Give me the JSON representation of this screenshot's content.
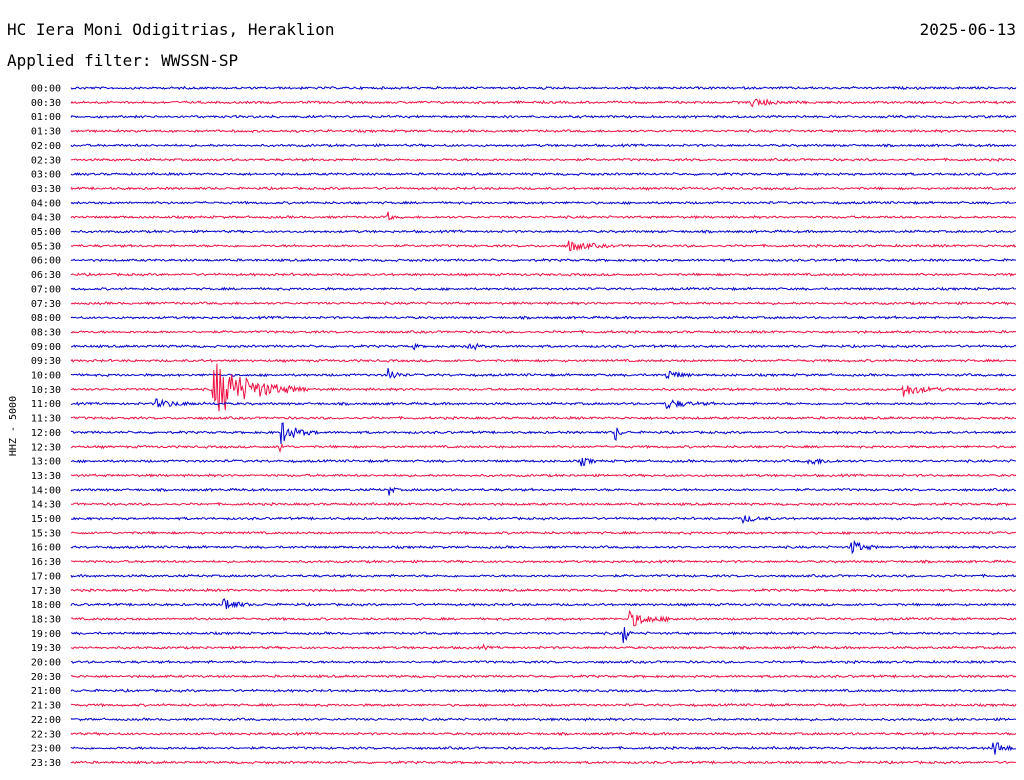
{
  "header": {
    "station": "HC Iera Moni Odigitrias, Heraklion",
    "date": "2025-06-13",
    "filter": "Applied filter: WWSSN-SP"
  },
  "chart_data": {
    "type": "line",
    "channel_label": "HHZ - 5000",
    "series_colors": [
      "#0000cc",
      "#ee1144"
    ],
    "rows": [
      {
        "label": "00:00",
        "color": "#0000cc",
        "events": []
      },
      {
        "label": "00:30",
        "color": "#ee1144",
        "events": [
          {
            "t": 0.72,
            "a": 4,
            "d": 0.06
          }
        ]
      },
      {
        "label": "01:00",
        "color": "#0000cc",
        "events": []
      },
      {
        "label": "01:30",
        "color": "#ee1144",
        "events": []
      },
      {
        "label": "02:00",
        "color": "#0000cc",
        "events": []
      },
      {
        "label": "02:30",
        "color": "#ee1144",
        "events": []
      },
      {
        "label": "03:00",
        "color": "#0000cc",
        "events": []
      },
      {
        "label": "03:30",
        "color": "#ee1144",
        "events": []
      },
      {
        "label": "04:00",
        "color": "#0000cc",
        "events": []
      },
      {
        "label": "04:30",
        "color": "#ee1144",
        "events": [
          {
            "t": 0.335,
            "a": 6,
            "d": 0.01
          }
        ]
      },
      {
        "label": "05:00",
        "color": "#0000cc",
        "events": []
      },
      {
        "label": "05:30",
        "color": "#ee1144",
        "events": [
          {
            "t": 0.525,
            "a": 6,
            "d": 0.05
          }
        ]
      },
      {
        "label": "06:00",
        "color": "#0000cc",
        "events": []
      },
      {
        "label": "06:30",
        "color": "#ee1144",
        "events": []
      },
      {
        "label": "07:00",
        "color": "#0000cc",
        "events": []
      },
      {
        "label": "07:30",
        "color": "#ee1144",
        "events": []
      },
      {
        "label": "08:00",
        "color": "#0000cc",
        "events": []
      },
      {
        "label": "08:30",
        "color": "#ee1144",
        "events": []
      },
      {
        "label": "09:00",
        "color": "#0000cc",
        "events": [
          {
            "t": 0.36,
            "a": 6,
            "d": 0.01
          },
          {
            "t": 0.42,
            "a": 6,
            "d": 0.02
          }
        ]
      },
      {
        "label": "09:30",
        "color": "#ee1144",
        "events": []
      },
      {
        "label": "10:00",
        "color": "#0000cc",
        "events": [
          {
            "t": 0.335,
            "a": 9,
            "d": 0.02
          },
          {
            "t": 0.63,
            "a": 6,
            "d": 0.03
          }
        ]
      },
      {
        "label": "10:30",
        "color": "#ee1144",
        "events": [
          {
            "t": 0.15,
            "a": 30,
            "d": 0.1
          },
          {
            "t": 0.88,
            "a": 7,
            "d": 0.05
          }
        ]
      },
      {
        "label": "11:00",
        "color": "#0000cc",
        "events": [
          {
            "t": 0.09,
            "a": 4,
            "d": 0.06
          },
          {
            "t": 0.63,
            "a": 5,
            "d": 0.05
          }
        ]
      },
      {
        "label": "11:30",
        "color": "#ee1144",
        "events": []
      },
      {
        "label": "12:00",
        "color": "#0000cc",
        "events": [
          {
            "t": 0.222,
            "a": 12,
            "d": 0.04
          },
          {
            "t": 0.575,
            "a": 12,
            "d": 0.01
          }
        ]
      },
      {
        "label": "12:30",
        "color": "#ee1144",
        "events": [
          {
            "t": 0.22,
            "a": 7,
            "d": 0.01
          }
        ]
      },
      {
        "label": "13:00",
        "color": "#0000cc",
        "events": [
          {
            "t": 0.54,
            "a": 5,
            "d": 0.02
          },
          {
            "t": 0.78,
            "a": 4,
            "d": 0.04
          }
        ]
      },
      {
        "label": "13:30",
        "color": "#ee1144",
        "events": []
      },
      {
        "label": "14:00",
        "color": "#0000cc",
        "events": [
          {
            "t": 0.336,
            "a": 7,
            "d": 0.01
          }
        ]
      },
      {
        "label": "14:30",
        "color": "#ee1144",
        "events": []
      },
      {
        "label": "15:00",
        "color": "#0000cc",
        "events": [
          {
            "t": 0.71,
            "a": 4,
            "d": 0.04
          }
        ]
      },
      {
        "label": "15:30",
        "color": "#ee1144",
        "events": []
      },
      {
        "label": "16:00",
        "color": "#0000cc",
        "events": [
          {
            "t": 0.825,
            "a": 9,
            "d": 0.03
          }
        ]
      },
      {
        "label": "16:30",
        "color": "#ee1144",
        "events": []
      },
      {
        "label": "17:00",
        "color": "#0000cc",
        "events": []
      },
      {
        "label": "17:30",
        "color": "#ee1144",
        "events": []
      },
      {
        "label": "18:00",
        "color": "#0000cc",
        "events": [
          {
            "t": 0.16,
            "a": 9,
            "d": 0.03
          }
        ]
      },
      {
        "label": "18:30",
        "color": "#ee1144",
        "events": [
          {
            "t": 0.59,
            "a": 8,
            "d": 0.06
          }
        ]
      },
      {
        "label": "19:00",
        "color": "#0000cc",
        "events": [
          {
            "t": 0.583,
            "a": 22,
            "d": 0.01
          }
        ]
      },
      {
        "label": "19:30",
        "color": "#ee1144",
        "events": [
          {
            "t": 0.435,
            "a": 3,
            "d": 0.01
          }
        ]
      },
      {
        "label": "20:00",
        "color": "#0000cc",
        "events": []
      },
      {
        "label": "20:30",
        "color": "#ee1144",
        "events": []
      },
      {
        "label": "21:00",
        "color": "#0000cc",
        "events": []
      },
      {
        "label": "21:30",
        "color": "#ee1144",
        "events": []
      },
      {
        "label": "22:00",
        "color": "#0000cc",
        "events": []
      },
      {
        "label": "22:30",
        "color": "#ee1144",
        "events": []
      },
      {
        "label": "23:00",
        "color": "#0000cc",
        "events": [
          {
            "t": 0.975,
            "a": 10,
            "d": 0.025
          }
        ]
      },
      {
        "label": "23:30",
        "color": "#ee1144",
        "events": []
      }
    ]
  }
}
